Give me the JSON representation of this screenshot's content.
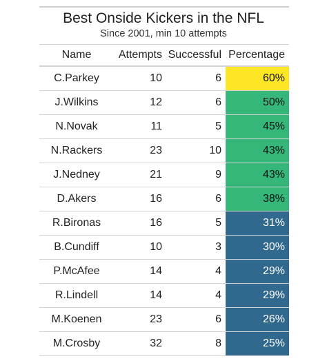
{
  "header": {
    "title": "Best Onside Kickers in the NFL",
    "subtitle": "Since 2001, min 10 attempts"
  },
  "columns": {
    "name": "Name",
    "attempts": "Attempts",
    "successful": "Successful",
    "percentage": "Percentage"
  },
  "colors": {
    "yellow": "#fde725",
    "green": "#35b779",
    "blue": "#31688e"
  },
  "rows": [
    {
      "name": "C.Parkey",
      "attempts": "10",
      "successful": "6",
      "percentage": "60%",
      "color": "yellow"
    },
    {
      "name": "J.Wilkins",
      "attempts": "12",
      "successful": "6",
      "percentage": "50%",
      "color": "green"
    },
    {
      "name": "N.Novak",
      "attempts": "11",
      "successful": "5",
      "percentage": "45%",
      "color": "green"
    },
    {
      "name": "N.Rackers",
      "attempts": "23",
      "successful": "10",
      "percentage": "43%",
      "color": "green"
    },
    {
      "name": "J.Nedney",
      "attempts": "21",
      "successful": "9",
      "percentage": "43%",
      "color": "green"
    },
    {
      "name": "D.Akers",
      "attempts": "16",
      "successful": "6",
      "percentage": "38%",
      "color": "green"
    },
    {
      "name": "R.Bironas",
      "attempts": "16",
      "successful": "5",
      "percentage": "31%",
      "color": "blue"
    },
    {
      "name": "B.Cundiff",
      "attempts": "10",
      "successful": "3",
      "percentage": "30%",
      "color": "blue"
    },
    {
      "name": "P.McAfee",
      "attempts": "14",
      "successful": "4",
      "percentage": "29%",
      "color": "blue"
    },
    {
      "name": "R.Lindell",
      "attempts": "14",
      "successful": "4",
      "percentage": "29%",
      "color": "blue"
    },
    {
      "name": "M.Koenen",
      "attempts": "23",
      "successful": "6",
      "percentage": "26%",
      "color": "blue"
    },
    {
      "name": "M.Crosby",
      "attempts": "32",
      "successful": "8",
      "percentage": "25%",
      "color": "blue"
    }
  ]
}
